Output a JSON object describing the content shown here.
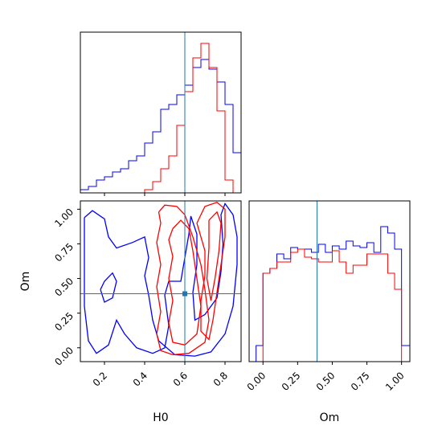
{
  "chart_data": {
    "type": "corner",
    "parameters": [
      "H0",
      "Om"
    ],
    "truths": {
      "H0": 0.6,
      "Om": 0.39
    },
    "colors": {
      "series_a": "#0000ff",
      "series_b": "#ff0000",
      "truth": "#1f77b4"
    },
    "panels": {
      "h0_hist": {
        "xlim": [
          0.08,
          0.88
        ],
        "xticks": [
          0.2,
          0.4,
          0.6,
          0.8
        ],
        "bin_edges": [
          0.08,
          0.12,
          0.16,
          0.2,
          0.24,
          0.28,
          0.32,
          0.36,
          0.4,
          0.44,
          0.48,
          0.52,
          0.56,
          0.6,
          0.64,
          0.68,
          0.72,
          0.76,
          0.8,
          0.84,
          0.88
        ],
        "series": [
          {
            "color": "#0000ff",
            "values": [
              0.02,
              0.04,
              0.08,
              0.1,
              0.13,
              0.15,
              0.2,
              0.23,
              0.31,
              0.38,
              0.52,
              0.55,
              0.61,
              0.67,
              0.78,
              0.83,
              0.77,
              0.69,
              0.55,
              0.25
            ]
          },
          {
            "color": "#ff0000",
            "values": [
              0.0,
              0.0,
              0.0,
              0.0,
              0.0,
              0.0,
              0.0,
              0.0,
              0.02,
              0.07,
              0.15,
              0.23,
              0.42,
              0.63,
              0.84,
              0.93,
              0.78,
              0.51,
              0.08,
              0.0
            ]
          }
        ]
      },
      "om_hist": {
        "xlim": [
          -0.1,
          1.06
        ],
        "xticks": [
          0.0,
          0.25,
          0.5,
          0.75,
          1.0
        ],
        "tick_labels": [
          "0.00",
          "0.25",
          "0.50",
          "0.75",
          "1.00"
        ],
        "bin_edges": [
          -0.1,
          -0.05,
          0.0,
          0.05,
          0.1,
          0.15,
          0.2,
          0.25,
          0.3,
          0.35,
          0.4,
          0.45,
          0.5,
          0.55,
          0.6,
          0.65,
          0.7,
          0.75,
          0.8,
          0.85,
          0.9,
          0.95,
          1.0,
          1.06
        ],
        "series": [
          {
            "color": "#0000ff",
            "values": [
              0.0,
              0.1,
              0.55,
              0.58,
              0.67,
              0.64,
              0.71,
              0.7,
              0.7,
              0.68,
              0.73,
              0.68,
              0.72,
              0.7,
              0.75,
              0.72,
              0.71,
              0.74,
              0.68,
              0.84,
              0.8,
              0.7,
              0.1
            ]
          },
          {
            "color": "#ff0000",
            "values": [
              0.0,
              0.0,
              0.55,
              0.58,
              0.62,
              0.62,
              0.68,
              0.7,
              0.65,
              0.64,
              0.62,
              0.62,
              0.69,
              0.62,
              0.55,
              0.6,
              0.6,
              0.67,
              0.67,
              0.67,
              0.55,
              0.45,
              0.0
            ]
          }
        ]
      },
      "scatter_2d": {
        "xlabel": "H0",
        "ylabel": "Om",
        "xlim": [
          0.08,
          0.88
        ],
        "ylim": [
          -0.1,
          1.06
        ],
        "xticks": [
          0.2,
          0.4,
          0.6,
          0.8
        ],
        "yticks": [
          0.0,
          0.25,
          0.5,
          0.75,
          1.0
        ],
        "ytick_labels": [
          "0.00",
          "0.25",
          "0.50",
          "0.75",
          "1.00"
        ],
        "contours": [
          {
            "color": "#0000ff",
            "points": [
              [
                0.1,
                0.94
              ],
              [
                0.14,
                0.99
              ],
              [
                0.2,
                0.93
              ],
              [
                0.22,
                0.8
              ],
              [
                0.26,
                0.72
              ],
              [
                0.34,
                0.76
              ],
              [
                0.4,
                0.8
              ],
              [
                0.42,
                0.65
              ],
              [
                0.4,
                0.52
              ],
              [
                0.42,
                0.38
              ],
              [
                0.44,
                0.2
              ],
              [
                0.47,
                0.05
              ],
              [
                0.55,
                -0.05
              ],
              [
                0.65,
                -0.06
              ],
              [
                0.73,
                -0.03
              ],
              [
                0.8,
                0.1
              ],
              [
                0.84,
                0.3
              ],
              [
                0.86,
                0.6
              ],
              [
                0.86,
                0.8
              ],
              [
                0.84,
                0.96
              ],
              [
                0.8,
                1.04
              ],
              [
                0.78,
                0.96
              ],
              [
                0.79,
                0.75
              ],
              [
                0.78,
                0.55
              ],
              [
                0.76,
                0.36
              ],
              [
                0.7,
                0.24
              ],
              [
                0.65,
                0.2
              ],
              [
                0.64,
                0.4
              ],
              [
                0.66,
                0.6
              ],
              [
                0.66,
                0.82
              ],
              [
                0.63,
                0.95
              ],
              [
                0.62,
                0.82
              ],
              [
                0.6,
                0.65
              ],
              [
                0.58,
                0.48
              ],
              [
                0.52,
                0.48
              ],
              [
                0.5,
                0.38
              ],
              [
                0.52,
                0.16
              ],
              [
                0.5,
                0.0
              ],
              [
                0.44,
                -0.04
              ],
              [
                0.36,
                0.0
              ],
              [
                0.3,
                0.1
              ],
              [
                0.26,
                0.2
              ],
              [
                0.22,
                0.02
              ],
              [
                0.16,
                -0.04
              ],
              [
                0.12,
                0.05
              ],
              [
                0.1,
                0.3
              ],
              [
                0.1,
                0.6
              ],
              [
                0.1,
                0.94
              ]
            ]
          },
          {
            "color": "#0000ff",
            "points": [
              [
                0.18,
                0.42
              ],
              [
                0.2,
                0.48
              ],
              [
                0.24,
                0.54
              ],
              [
                0.26,
                0.48
              ],
              [
                0.24,
                0.36
              ],
              [
                0.2,
                0.33
              ],
              [
                0.18,
                0.42
              ]
            ]
          },
          {
            "color": "#ff0000",
            "points": [
              [
                0.47,
                0.98
              ],
              [
                0.5,
                1.03
              ],
              [
                0.56,
                1.02
              ],
              [
                0.6,
                0.96
              ],
              [
                0.64,
                0.8
              ],
              [
                0.68,
                0.6
              ],
              [
                0.7,
                0.42
              ],
              [
                0.72,
                0.2
              ],
              [
                0.7,
                0.04
              ],
              [
                0.62,
                -0.04
              ],
              [
                0.54,
                -0.05
              ],
              [
                0.48,
                -0.02
              ],
              [
                0.46,
                0.1
              ],
              [
                0.48,
                0.26
              ],
              [
                0.46,
                0.44
              ],
              [
                0.48,
                0.6
              ],
              [
                0.46,
                0.76
              ],
              [
                0.48,
                0.9
              ],
              [
                0.47,
                0.98
              ]
            ]
          },
          {
            "color": "#ff0000",
            "points": [
              [
                0.54,
                0.86
              ],
              [
                0.58,
                0.92
              ],
              [
                0.62,
                0.86
              ],
              [
                0.64,
                0.7
              ],
              [
                0.66,
                0.5
              ],
              [
                0.68,
                0.3
              ],
              [
                0.66,
                0.1
              ],
              [
                0.6,
                0.02
              ],
              [
                0.54,
                0.04
              ],
              [
                0.52,
                0.18
              ],
              [
                0.54,
                0.34
              ],
              [
                0.52,
                0.5
              ],
              [
                0.54,
                0.66
              ],
              [
                0.52,
                0.78
              ],
              [
                0.54,
                0.86
              ]
            ]
          },
          {
            "color": "#ff0000",
            "points": [
              [
                0.66,
                0.9
              ],
              [
                0.7,
                1.02
              ],
              [
                0.76,
                1.05
              ],
              [
                0.8,
                1.0
              ],
              [
                0.8,
                0.8
              ],
              [
                0.78,
                0.6
              ],
              [
                0.76,
                0.4
              ],
              [
                0.74,
                0.2
              ],
              [
                0.72,
                0.06
              ],
              [
                0.68,
                0.12
              ],
              [
                0.68,
                0.34
              ],
              [
                0.7,
                0.52
              ],
              [
                0.7,
                0.7
              ],
              [
                0.66,
                0.9
              ]
            ]
          },
          {
            "color": "#ff0000",
            "points": [
              [
                0.72,
                0.92
              ],
              [
                0.76,
                0.98
              ],
              [
                0.78,
                0.9
              ],
              [
                0.77,
                0.7
              ],
              [
                0.75,
                0.5
              ],
              [
                0.73,
                0.34
              ],
              [
                0.71,
                0.5
              ],
              [
                0.72,
                0.72
              ],
              [
                0.72,
                0.92
              ]
            ]
          }
        ]
      }
    }
  }
}
